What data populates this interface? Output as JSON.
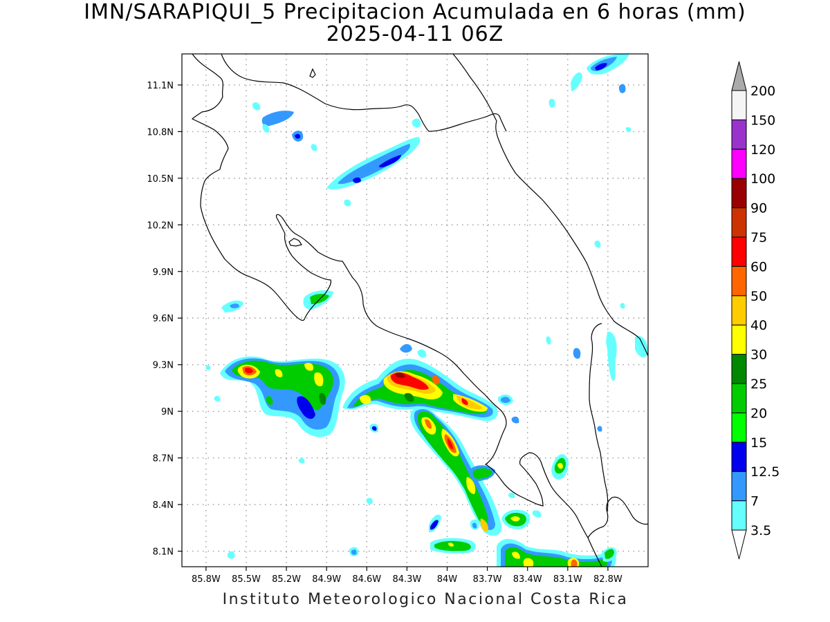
{
  "title": {
    "line1": "IMN/SARAPIQUI_5 Precipitacion Acumulada en 6 horas (mm)",
    "line2": "2025-04-11 06Z"
  },
  "footer": "Instituto Meteorologico Nacional Costa Rica",
  "map": {
    "lon_range": [
      -85.98,
      -82.5
    ],
    "lat_range": [
      8.0,
      11.3
    ],
    "lon_ticks": [
      "85.8W",
      "85.5W",
      "85.2W",
      "84.9W",
      "84.6W",
      "84.3W",
      "84W",
      "83.7W",
      "83.4W",
      "83.1W",
      "82.8W"
    ],
    "lon_tick_values": [
      -85.8,
      -85.5,
      -85.2,
      -84.9,
      -84.6,
      -84.3,
      -84.0,
      -83.7,
      -83.4,
      -83.1,
      -82.8
    ],
    "lat_ticks": [
      "8.1N",
      "8.4N",
      "8.7N",
      "9N",
      "9.3N",
      "9.6N",
      "9.9N",
      "10.2N",
      "10.5N",
      "10.8N",
      "11.1N"
    ],
    "lat_tick_values": [
      8.1,
      8.4,
      8.7,
      9.0,
      9.3,
      9.6,
      9.9,
      10.2,
      10.5,
      10.8,
      11.1
    ],
    "grid": "dotted"
  },
  "colorbar": {
    "labels": [
      "3.5",
      "7",
      "12.5",
      "15",
      "20",
      "25",
      "30",
      "40",
      "50",
      "60",
      "75",
      "90",
      "100",
      "120",
      "150",
      "200"
    ],
    "colors": [
      "#66ffff",
      "#3399ff",
      "#0000ee",
      "#00ff00",
      "#00cc00",
      "#008800",
      "#ffff00",
      "#ffcc00",
      "#ff6600",
      "#ff0000",
      "#cc3300",
      "#990000",
      "#ff00ff",
      "#9933cc",
      "#f5f5f5",
      "#aaaaaa"
    ]
  }
}
